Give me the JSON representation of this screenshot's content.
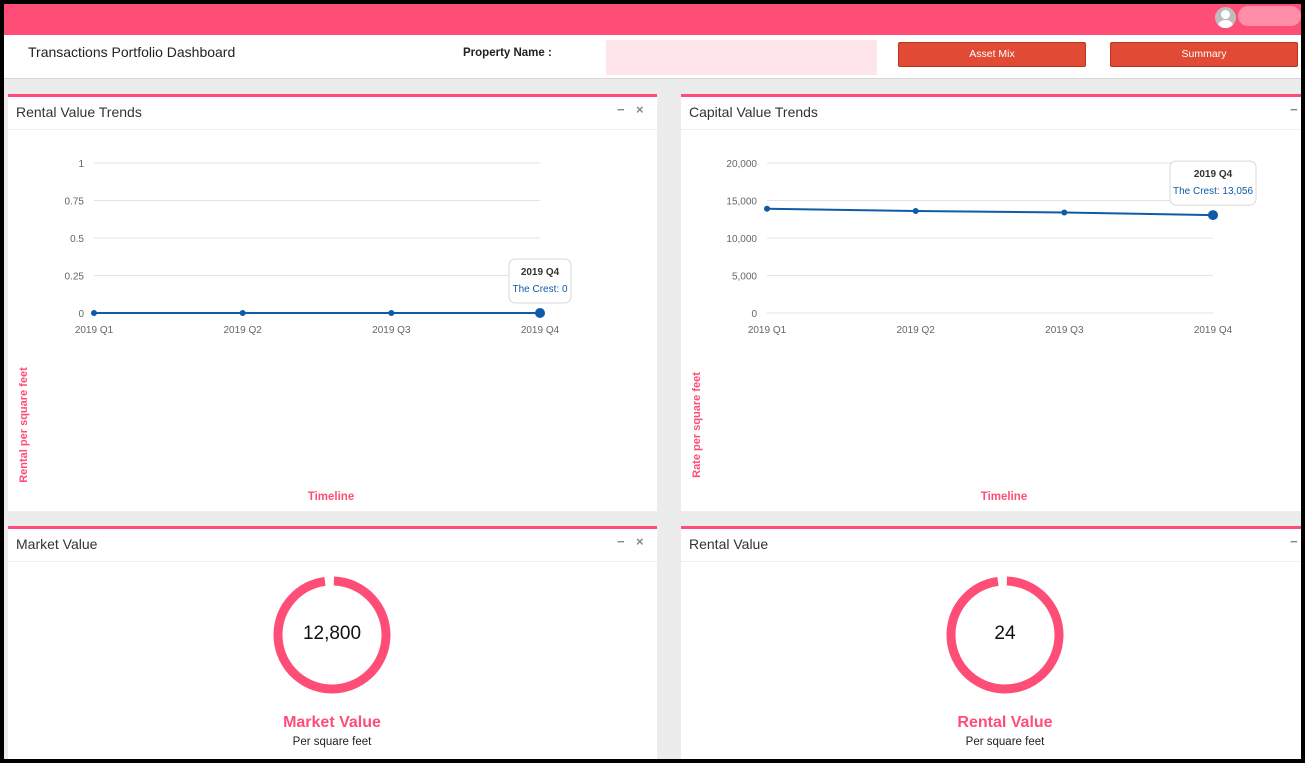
{
  "header": {
    "title": "Transactions Portfolio Dashboard",
    "property_label": "Property Name :",
    "property_value": "",
    "asset_mix_label": "Asset Mix",
    "summary_label": "Summary"
  },
  "colors": {
    "brand": "#fe4e77",
    "button": "#e14a35",
    "series": "#0f5ba7"
  },
  "icons": {
    "user": "user-avatar-icon",
    "minimize": "minimize-icon",
    "close": "close-icon"
  },
  "panels": {
    "rental_trends": {
      "title": "Rental Value Trends",
      "minimize": "−",
      "close": "×"
    },
    "capital_trends": {
      "title": "Capital Value Trends",
      "minimize": "−"
    },
    "market_value": {
      "title": "Market Value",
      "minimize": "−",
      "close": "×",
      "value": "12,800",
      "label": "Market Value",
      "sublabel": "Per square feet"
    },
    "rental_value": {
      "title": "Rental Value",
      "minimize": "−",
      "value": "24",
      "label": "Rental Value",
      "sublabel": "Per square feet"
    }
  },
  "chart_data": [
    {
      "type": "line",
      "categories": [
        "2019 Q1",
        "2019 Q2",
        "2019 Q3",
        "2019 Q4"
      ],
      "series": [
        {
          "name": "The Crest",
          "values": [
            0,
            0,
            0,
            0
          ]
        }
      ],
      "yticks": [
        "0",
        "0.25",
        "0.5",
        "0.75",
        "1"
      ],
      "ylim": [
        0,
        1
      ],
      "xlabel": "Timeline",
      "ylabel": "Rental per square feet",
      "tooltip": {
        "title": "2019 Q4",
        "text": "The Crest: 0"
      },
      "grid": true
    },
    {
      "type": "line",
      "categories": [
        "2019 Q1",
        "2019 Q2",
        "2019 Q3",
        "2019 Q4"
      ],
      "series": [
        {
          "name": "The Crest",
          "values": [
            13900,
            13600,
            13400,
            13056
          ]
        }
      ],
      "yticks": [
        "0",
        "5,000",
        "10,000",
        "15,000",
        "20,000"
      ],
      "ylim": [
        0,
        20000
      ],
      "xlabel": "Timeline",
      "ylabel": "Rate per square feet",
      "tooltip": {
        "title": "2019 Q4",
        "text": "The Crest: 13,056"
      },
      "grid": true
    }
  ]
}
